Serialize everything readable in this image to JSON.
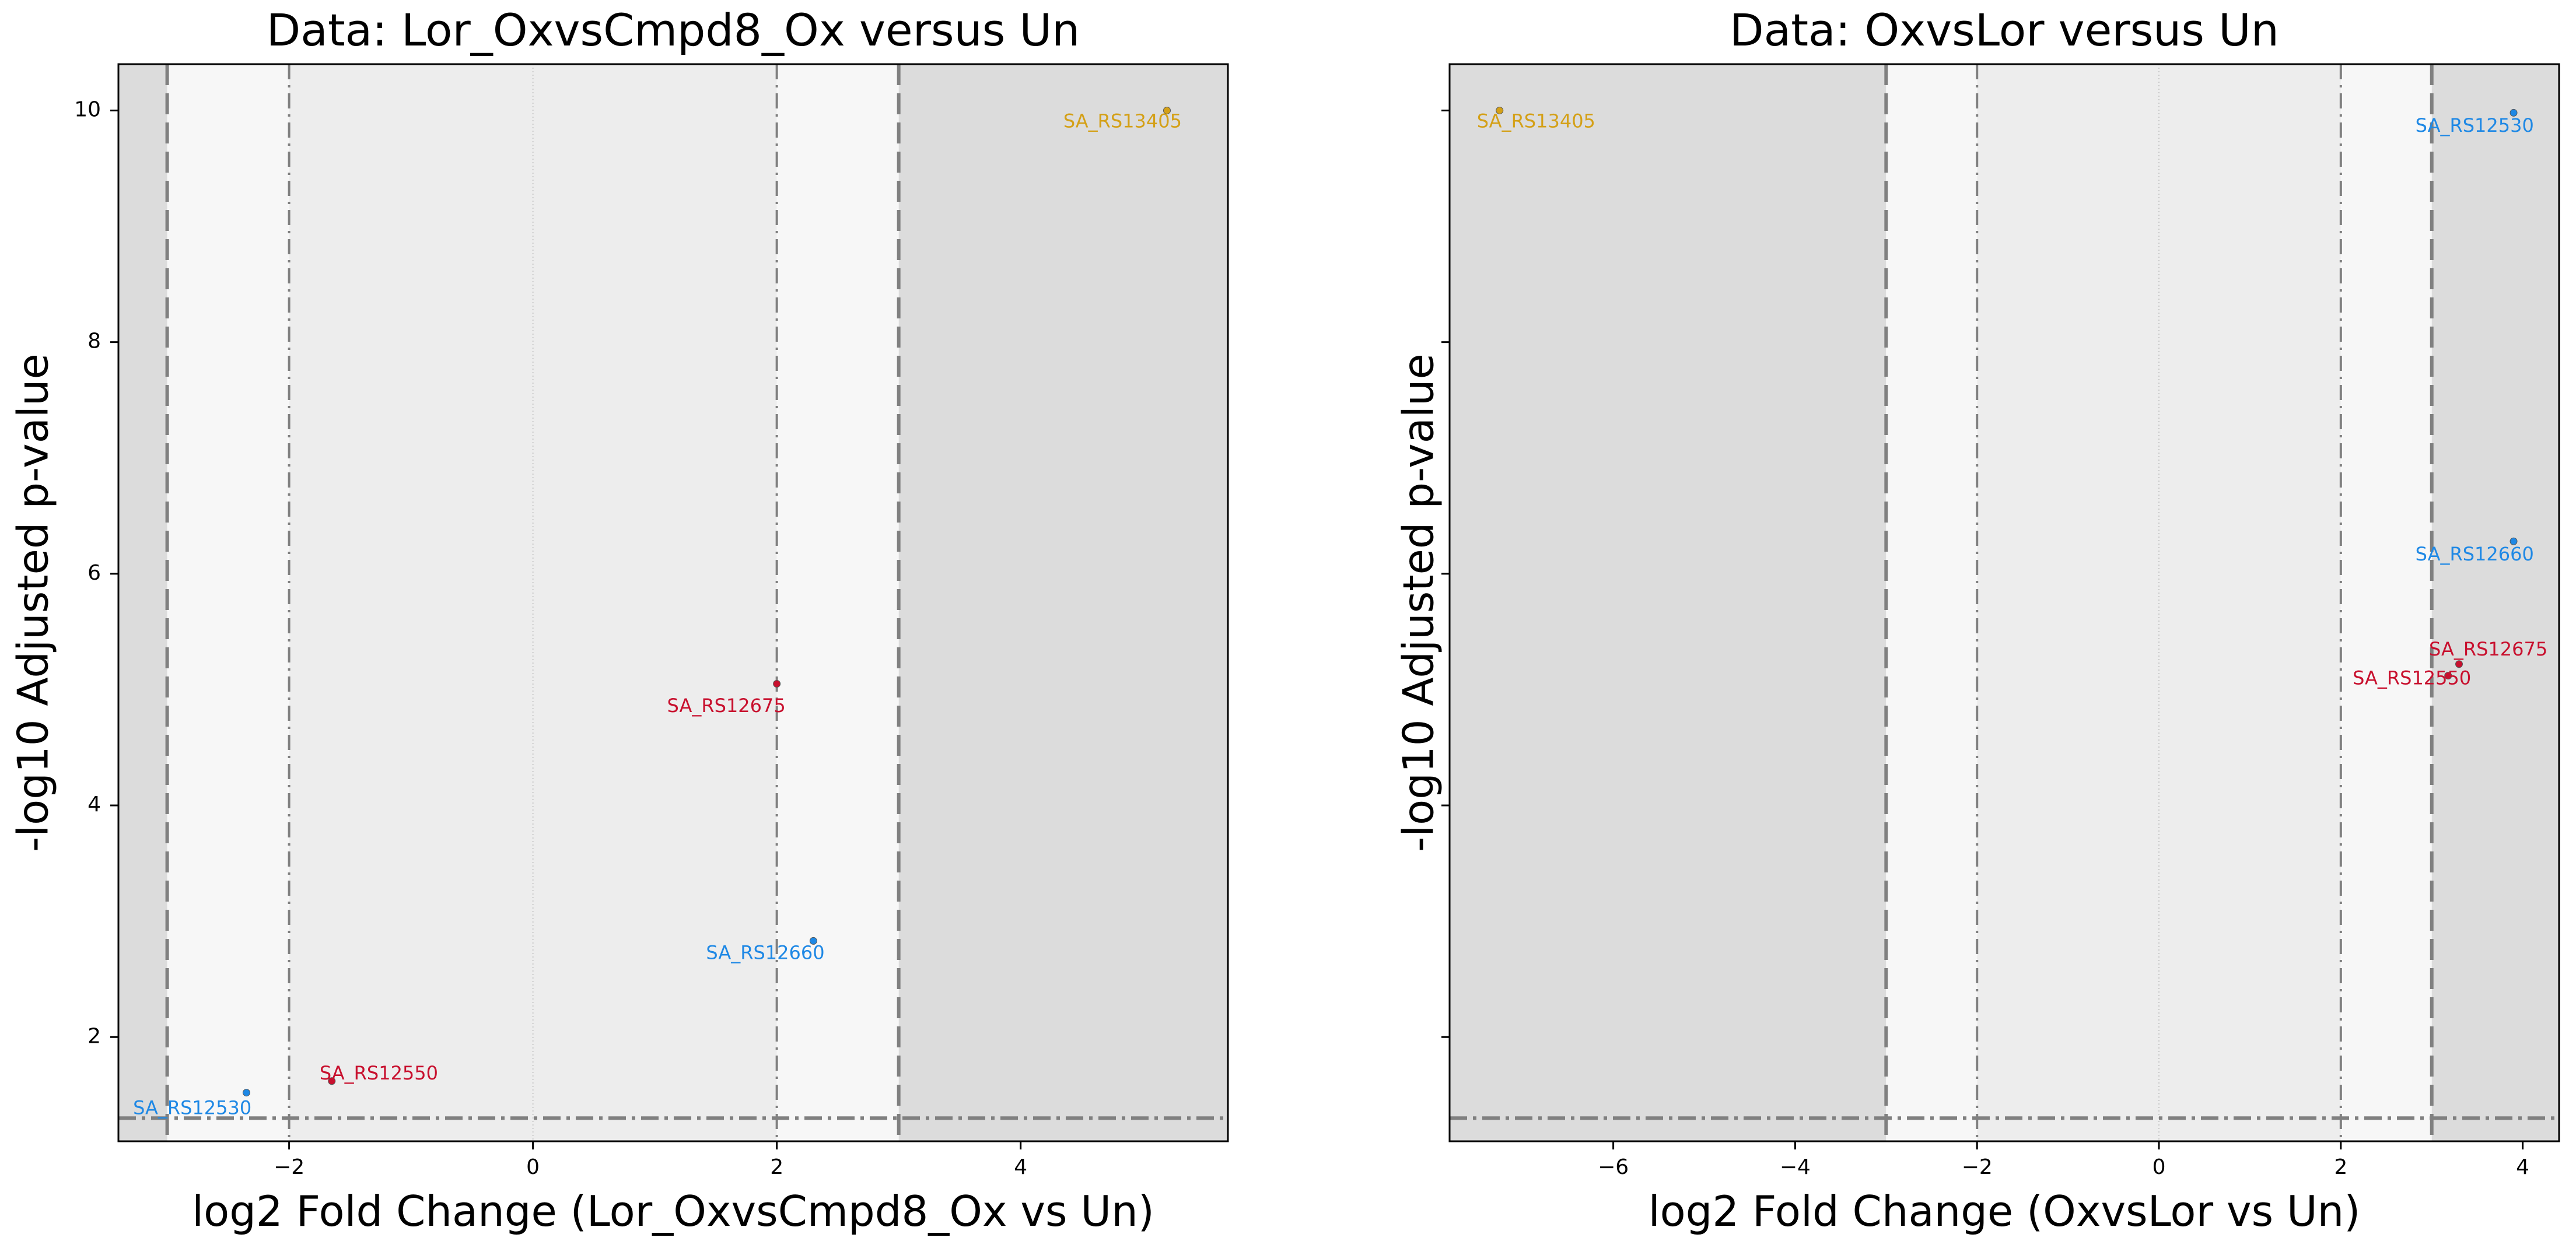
{
  "figure": {
    "background": "#ffffff",
    "colors": {
      "outer_region": "#dcdcdc",
      "mid_region": "#f7f7f7",
      "inner_region": "#ededed",
      "threshold_line": "#808080",
      "zero_line": "#c8c8c8",
      "blue_label": "#1e88e5",
      "red_label": "#c8102e",
      "gold_label": "#d4a017"
    }
  },
  "chart_data": [
    {
      "type": "scatter",
      "title": "Data: Lor_OxvsCmpd8_Ox versus Un",
      "xlabel": "log2 Fold Change (Lor_OxvsCmpd8_Ox vs Un)",
      "ylabel": "-log10 Adjusted p-value",
      "xlim": [
        -3.4,
        5.7
      ],
      "ylim": [
        1.1,
        10.4
      ],
      "xticks": [
        -2,
        0,
        2,
        4
      ],
      "xtick_labels": [
        "−2",
        "0",
        "2",
        "4"
      ],
      "yticks": [
        2,
        4,
        6,
        8,
        10
      ],
      "ytick_labels": [
        "2",
        "4",
        "6",
        "8",
        "10"
      ],
      "show_yticklabels": true,
      "lfc_outer_threshold": 3,
      "lfc_inner_threshold": 2,
      "padj_threshold_line": 1.3,
      "grid": false,
      "points": [
        {
          "label": "SA_RS13405",
          "x": 5.2,
          "y": 10.0,
          "color": "#d4a017",
          "label_x": 4.35,
          "label_y": 9.9
        },
        {
          "label": "SA_RS12675",
          "x": 2.0,
          "y": 5.05,
          "color": "#c8102e",
          "label_x": 1.1,
          "label_y": 4.85
        },
        {
          "label": "SA_RS12660",
          "x": 2.3,
          "y": 2.83,
          "color": "#1e88e5",
          "label_x": 1.42,
          "label_y": 2.72
        },
        {
          "label": "SA_RS12550",
          "x": -1.65,
          "y": 1.62,
          "color": "#c8102e",
          "label_x": -1.75,
          "label_y": 1.68
        },
        {
          "label": "SA_RS12530",
          "x": -2.35,
          "y": 1.52,
          "color": "#1e88e5",
          "label_x": -3.28,
          "label_y": 1.38
        }
      ]
    },
    {
      "type": "scatter",
      "title": "Data: OxvsLor versus Un",
      "xlabel": "log2 Fold Change (OxvsLor vs Un)",
      "ylabel": "-log10 Adjusted p-value",
      "xlim": [
        -7.8,
        4.4
      ],
      "ylim": [
        1.1,
        10.4
      ],
      "xticks": [
        -6,
        -4,
        -2,
        0,
        2,
        4
      ],
      "xtick_labels": [
        "−6",
        "−4",
        "−2",
        "0",
        "2",
        "4"
      ],
      "yticks": [
        2,
        4,
        6,
        8,
        10
      ],
      "ytick_labels": [
        "",
        "",
        "",
        "",
        ""
      ],
      "show_yticklabels": false,
      "lfc_outer_threshold": 3,
      "lfc_inner_threshold": 2,
      "padj_threshold_line": 1.3,
      "grid": false,
      "points": [
        {
          "label": "SA_RS13405",
          "x": -7.25,
          "y": 10.0,
          "color": "#d4a017",
          "label_x": -7.5,
          "label_y": 9.9
        },
        {
          "label": "SA_RS12530",
          "x": 3.9,
          "y": 9.98,
          "color": "#1e88e5",
          "label_x": 2.82,
          "label_y": 9.86
        },
        {
          "label": "SA_RS12660",
          "x": 3.9,
          "y": 6.28,
          "color": "#1e88e5",
          "label_x": 2.82,
          "label_y": 6.16
        },
        {
          "label": "SA_RS12675",
          "x": 3.3,
          "y": 5.22,
          "color": "#c8102e",
          "label_x": 2.97,
          "label_y": 5.34
        },
        {
          "label": "SA_RS12550",
          "x": 3.18,
          "y": 5.12,
          "color": "#c8102e",
          "label_x": 2.13,
          "label_y": 5.09
        }
      ]
    }
  ]
}
